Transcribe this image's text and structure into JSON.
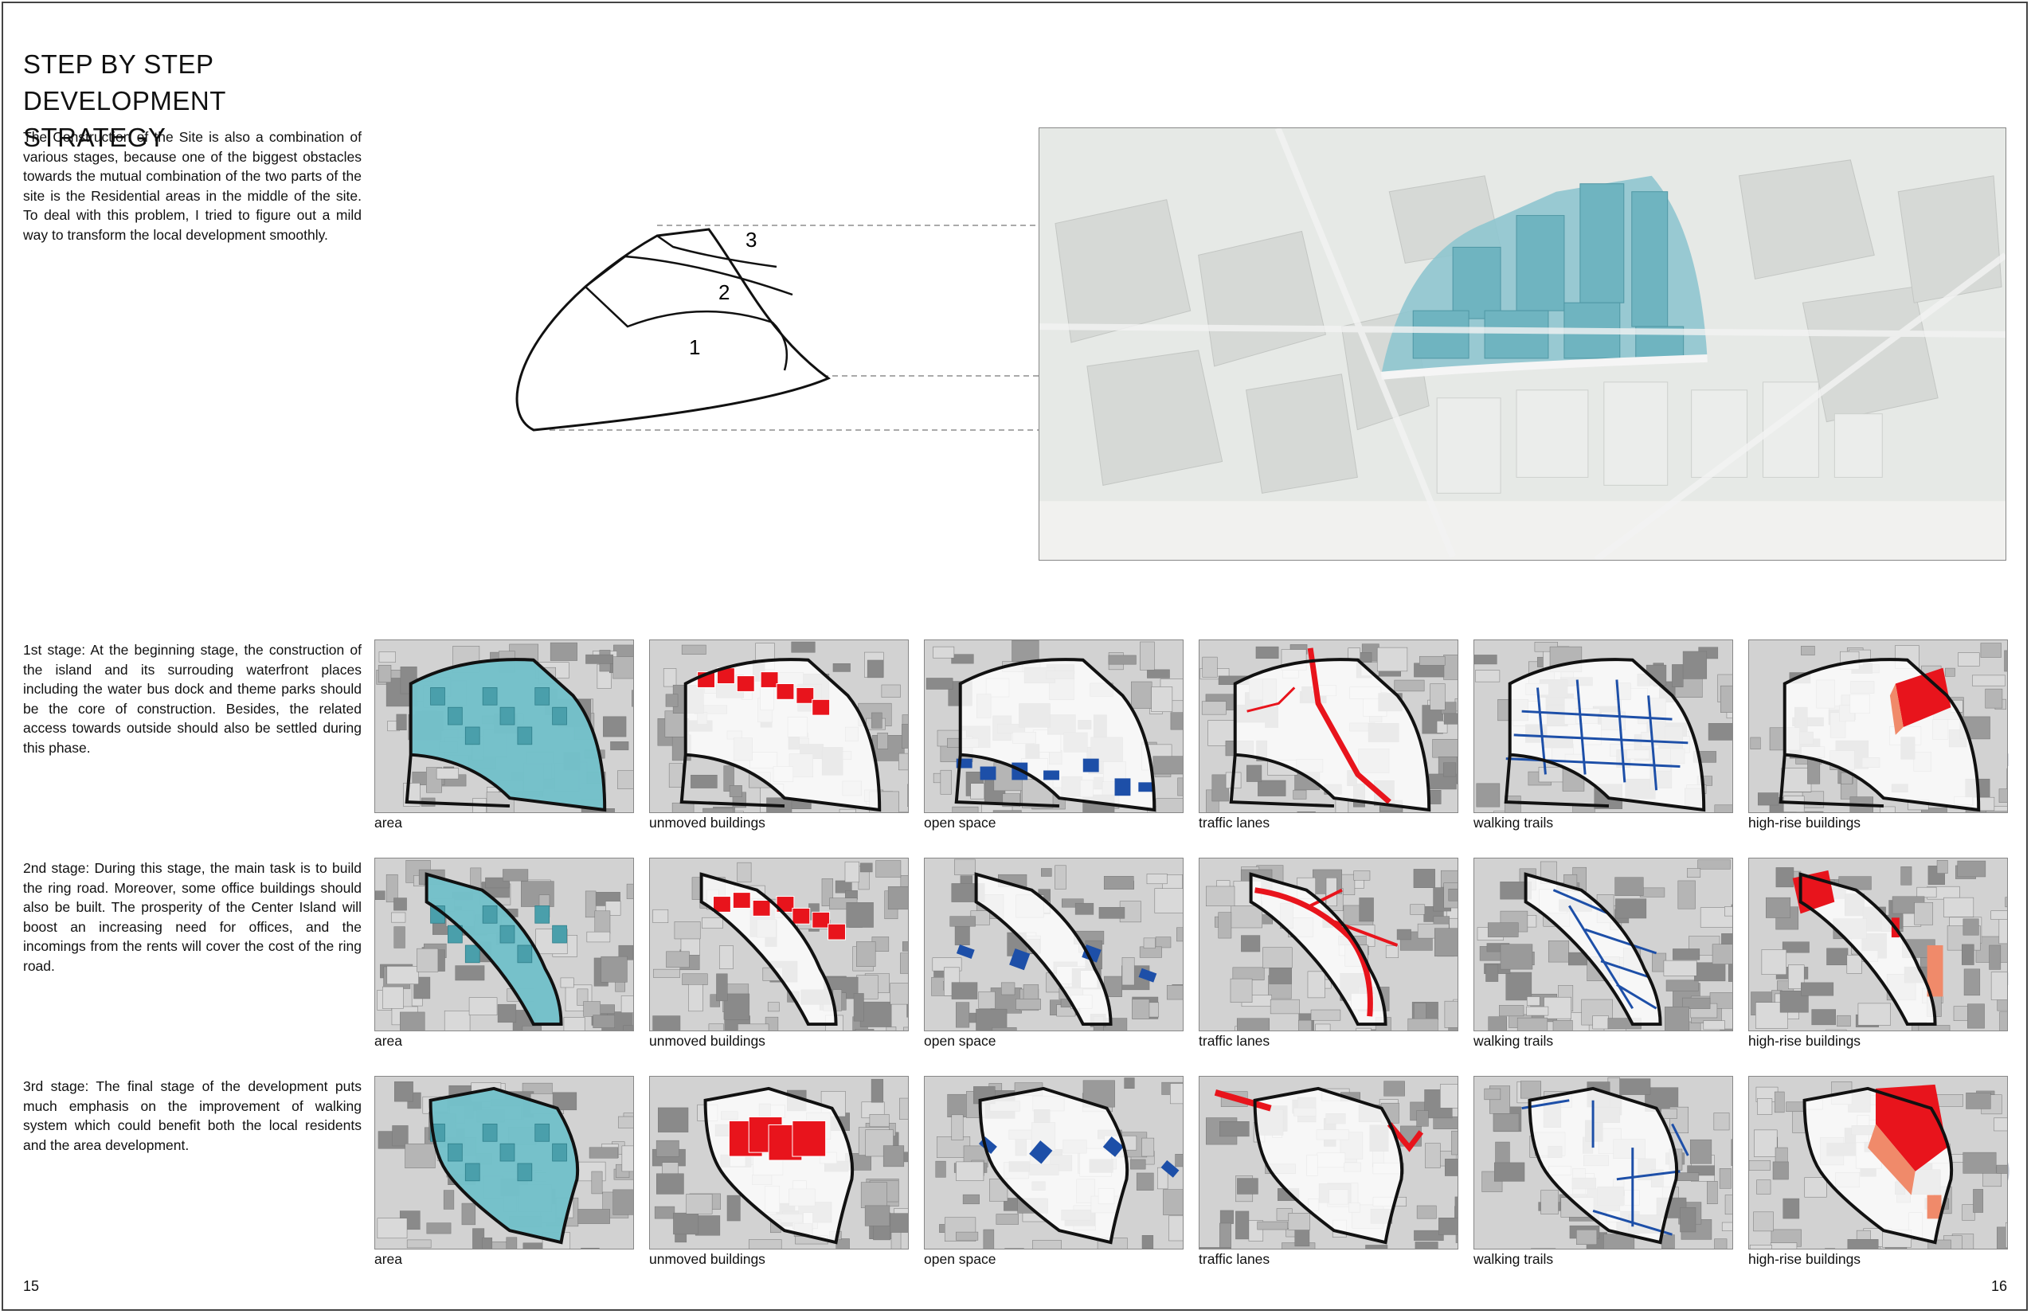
{
  "title": "STEP BY STEP DEVELOPMENT STRATEGY",
  "intro": "The Construction of the Site is also a combination of various stages, because one of the biggest obstacles towards the mutual combination of the two parts of the site is the Residential areas in the middle of the site. To deal with this problem, I tried to figure out a mild way to transform the local development smoothly.",
  "diagram": {
    "labels": [
      "1",
      "2",
      "3"
    ]
  },
  "stages": [
    {
      "text": "1st stage: At the beginning stage, the construction of the island and its surrouding waterfront places including the water bus dock and theme parks should be the core of construction. Besides, the related access towards outside should also be settled during this phase.",
      "number": "1"
    },
    {
      "text": "2nd stage: During this stage, the main task is to build the ring road. Moreover, some office buildings should also be built. The prosperity of the Center Island will boost an increasing need for offices, and the incomings from the rents will cover the cost of the ring road.",
      "number": "2"
    },
    {
      "text": "3rd stage: The final stage of the development puts much emphasis on the improvement of walking system which could benefit both the local residents and the area development.",
      "number": "3"
    }
  ],
  "captions": [
    "area",
    "unmoved buildings",
    "open space",
    "traffic lanes",
    "walking trails",
    "high-rise buildings"
  ],
  "colors": {
    "area": "#5fb7c2",
    "unmoved": "#e8141c",
    "open_space": "#1d4fa8",
    "traffic": "#e8141c",
    "walking": "#1d4fa8",
    "highrise": "#e8141c",
    "highrise_light": "#f08a6a",
    "big_number": "#b9bec8"
  },
  "page_numbers": {
    "left": "15",
    "right": "16"
  }
}
